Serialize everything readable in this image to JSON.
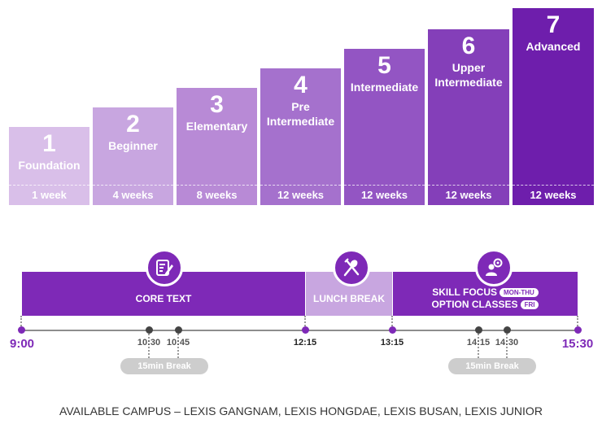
{
  "levels": [
    {
      "num": "1",
      "name1": "Foundation",
      "name2": "",
      "duration": "1 week",
      "color": "#d9bfe9"
    },
    {
      "num": "2",
      "name1": "Beginner",
      "name2": "",
      "duration": "4 weeks",
      "color": "#c8a6e0"
    },
    {
      "num": "3",
      "name1": "Elementary",
      "name2": "",
      "duration": "8 weeks",
      "color": "#b88ad6"
    },
    {
      "num": "4",
      "name1": "Pre",
      "name2": "Intermediate",
      "duration": "12 weeks",
      "color": "#a571cd"
    },
    {
      "num": "5",
      "name1": "Intermediate",
      "name2": "",
      "duration": "12 weeks",
      "color": "#9355c3"
    },
    {
      "num": "6",
      "name1": "Upper",
      "name2": "Intermediate",
      "duration": "12 weeks",
      "color": "#843fb9"
    },
    {
      "num": "7",
      "name1": "Advanced",
      "name2": "",
      "duration": "12 weeks",
      "color": "#6e1eac"
    }
  ],
  "schedule": {
    "core_text": "CORE TEXT",
    "lunch_break": "LUNCH BREAK",
    "skill_focus": "SKILL FOCUS",
    "skill_tag": "MON-THU",
    "option_classes": "OPTION CLASSES",
    "option_tag": "FRI",
    "times": {
      "t0900": "9:00",
      "t1030": "10:30",
      "t1045": "10:45",
      "t1215": "12:15",
      "t1315": "13:15",
      "t1415": "14:15",
      "t1430": "14:30",
      "t1530": "15:30"
    },
    "break1": "15min Break",
    "break2": "15min Break"
  },
  "footer": "AVAILABLE CAMPUS – LEXIS GANGNAM, LEXIS HONGDAE, LEXIS BUSAN, LEXIS JUNIOR",
  "colors": {
    "accent": "#7e29b7",
    "lunch": "#c8a6e0",
    "gray": "#8d8d8d"
  }
}
